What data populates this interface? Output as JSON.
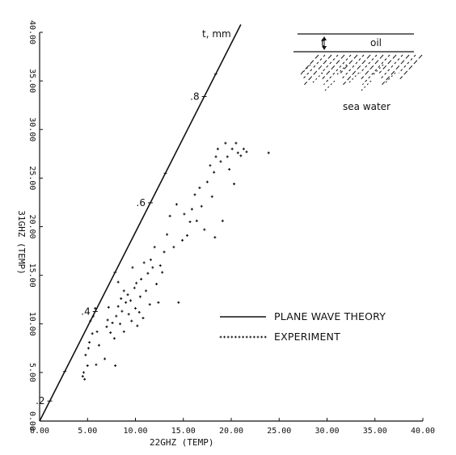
{
  "chart_data": {
    "type": "scatter",
    "xlabel": "22GHZ (TEMP)",
    "ylabel": "31GHZ (TEMP)",
    "xlim": [
      0,
      40
    ],
    "ylim": [
      0,
      40
    ],
    "xticks": [
      "0.00",
      "5.00",
      "10.00",
      "15.00",
      "20.00",
      "25.00",
      "30.00",
      "35.00",
      "40.00"
    ],
    "yticks": [
      "0.00",
      "5.00",
      "10.00",
      "15.00",
      "20.00",
      "25.00",
      "30.00",
      "35.00",
      "40.00"
    ],
    "grid": false,
    "legend_position": "middle-right",
    "series": [
      {
        "name": "PLANE WAVE THEORY",
        "kind": "line",
        "x": [
          0,
          21.0
        ],
        "y": [
          0,
          40.8
        ]
      },
      {
        "name": "EXPERIMENT",
        "kind": "scatter",
        "points": [
          [
            4.5,
            4.6
          ],
          [
            4.6,
            5.0
          ],
          [
            4.7,
            4.3
          ],
          [
            4.8,
            6.8
          ],
          [
            5.0,
            5.7
          ],
          [
            5.1,
            7.5
          ],
          [
            5.2,
            8.1
          ],
          [
            5.5,
            9.0
          ],
          [
            5.3,
            10.3
          ],
          [
            5.6,
            10.8
          ],
          [
            5.8,
            11.6
          ],
          [
            6.0,
            9.2
          ],
          [
            6.2,
            7.8
          ],
          [
            5.9,
            5.8
          ],
          [
            6.8,
            6.4
          ],
          [
            7.0,
            9.7
          ],
          [
            7.1,
            10.4
          ],
          [
            7.2,
            11.7
          ],
          [
            7.4,
            9.1
          ],
          [
            7.6,
            10.1
          ],
          [
            7.8,
            8.5
          ],
          [
            8.0,
            10.8
          ],
          [
            8.2,
            11.8
          ],
          [
            8.5,
            12.6
          ],
          [
            8.8,
            13.4
          ],
          [
            8.2,
            14.3
          ],
          [
            7.9,
            5.7
          ],
          [
            8.4,
            10.0
          ],
          [
            8.6,
            11.3
          ],
          [
            8.8,
            9.2
          ],
          [
            9.0,
            12.2
          ],
          [
            9.2,
            13.0
          ],
          [
            9.3,
            11.0
          ],
          [
            9.5,
            12.4
          ],
          [
            9.6,
            10.3
          ],
          [
            9.7,
            15.8
          ],
          [
            9.9,
            13.7
          ],
          [
            10.0,
            11.6
          ],
          [
            10.1,
            14.2
          ],
          [
            10.2,
            9.8
          ],
          [
            10.4,
            11.2
          ],
          [
            10.5,
            12.8
          ],
          [
            10.6,
            14.6
          ],
          [
            10.8,
            10.6
          ],
          [
            10.9,
            16.3
          ],
          [
            11.1,
            13.4
          ],
          [
            11.3,
            15.2
          ],
          [
            11.5,
            12.0
          ],
          [
            11.6,
            16.6
          ],
          [
            11.8,
            15.8
          ],
          [
            12.0,
            17.9
          ],
          [
            12.2,
            14.1
          ],
          [
            12.4,
            12.2
          ],
          [
            12.6,
            16.0
          ],
          [
            12.8,
            15.3
          ],
          [
            13.0,
            17.4
          ],
          [
            13.3,
            19.2
          ],
          [
            13.6,
            21.1
          ],
          [
            14.0,
            17.9
          ],
          [
            14.3,
            22.3
          ],
          [
            14.5,
            12.2
          ],
          [
            14.9,
            18.6
          ],
          [
            15.1,
            21.3
          ],
          [
            15.4,
            19.1
          ],
          [
            15.7,
            20.5
          ],
          [
            15.9,
            21.8
          ],
          [
            16.2,
            23.3
          ],
          [
            16.4,
            20.6
          ],
          [
            16.7,
            24.0
          ],
          [
            16.9,
            22.1
          ],
          [
            17.2,
            19.7
          ],
          [
            17.5,
            24.6
          ],
          [
            17.8,
            26.3
          ],
          [
            18.0,
            23.1
          ],
          [
            18.2,
            25.6
          ],
          [
            18.4,
            27.2
          ],
          [
            18.3,
            18.9
          ],
          [
            18.6,
            28.0
          ],
          [
            18.9,
            26.7
          ],
          [
            19.1,
            20.6
          ],
          [
            19.4,
            28.6
          ],
          [
            19.6,
            27.2
          ],
          [
            19.8,
            25.9
          ],
          [
            20.1,
            28.0
          ],
          [
            20.3,
            24.4
          ],
          [
            20.5,
            28.6
          ],
          [
            20.7,
            27.6
          ],
          [
            21.0,
            27.3
          ],
          [
            21.3,
            28.0
          ],
          [
            21.6,
            27.7
          ],
          [
            23.9,
            27.6
          ]
        ]
      }
    ],
    "annotations": {
      "t_label": "t, mm",
      "thickness_marks": [
        {
          "label": ".2",
          "x": 1.06,
          "y": 2.06
        },
        {
          "label": ".4",
          "x": 5.8,
          "y": 11.27
        },
        {
          "label": ".6",
          "x": 11.56,
          "y": 22.46
        },
        {
          "label": ".8",
          "x": 17.18,
          "y": 33.39
        }
      ]
    },
    "inset": {
      "t_label": "t",
      "oil_label": "oil",
      "water_label": "sea water"
    }
  }
}
